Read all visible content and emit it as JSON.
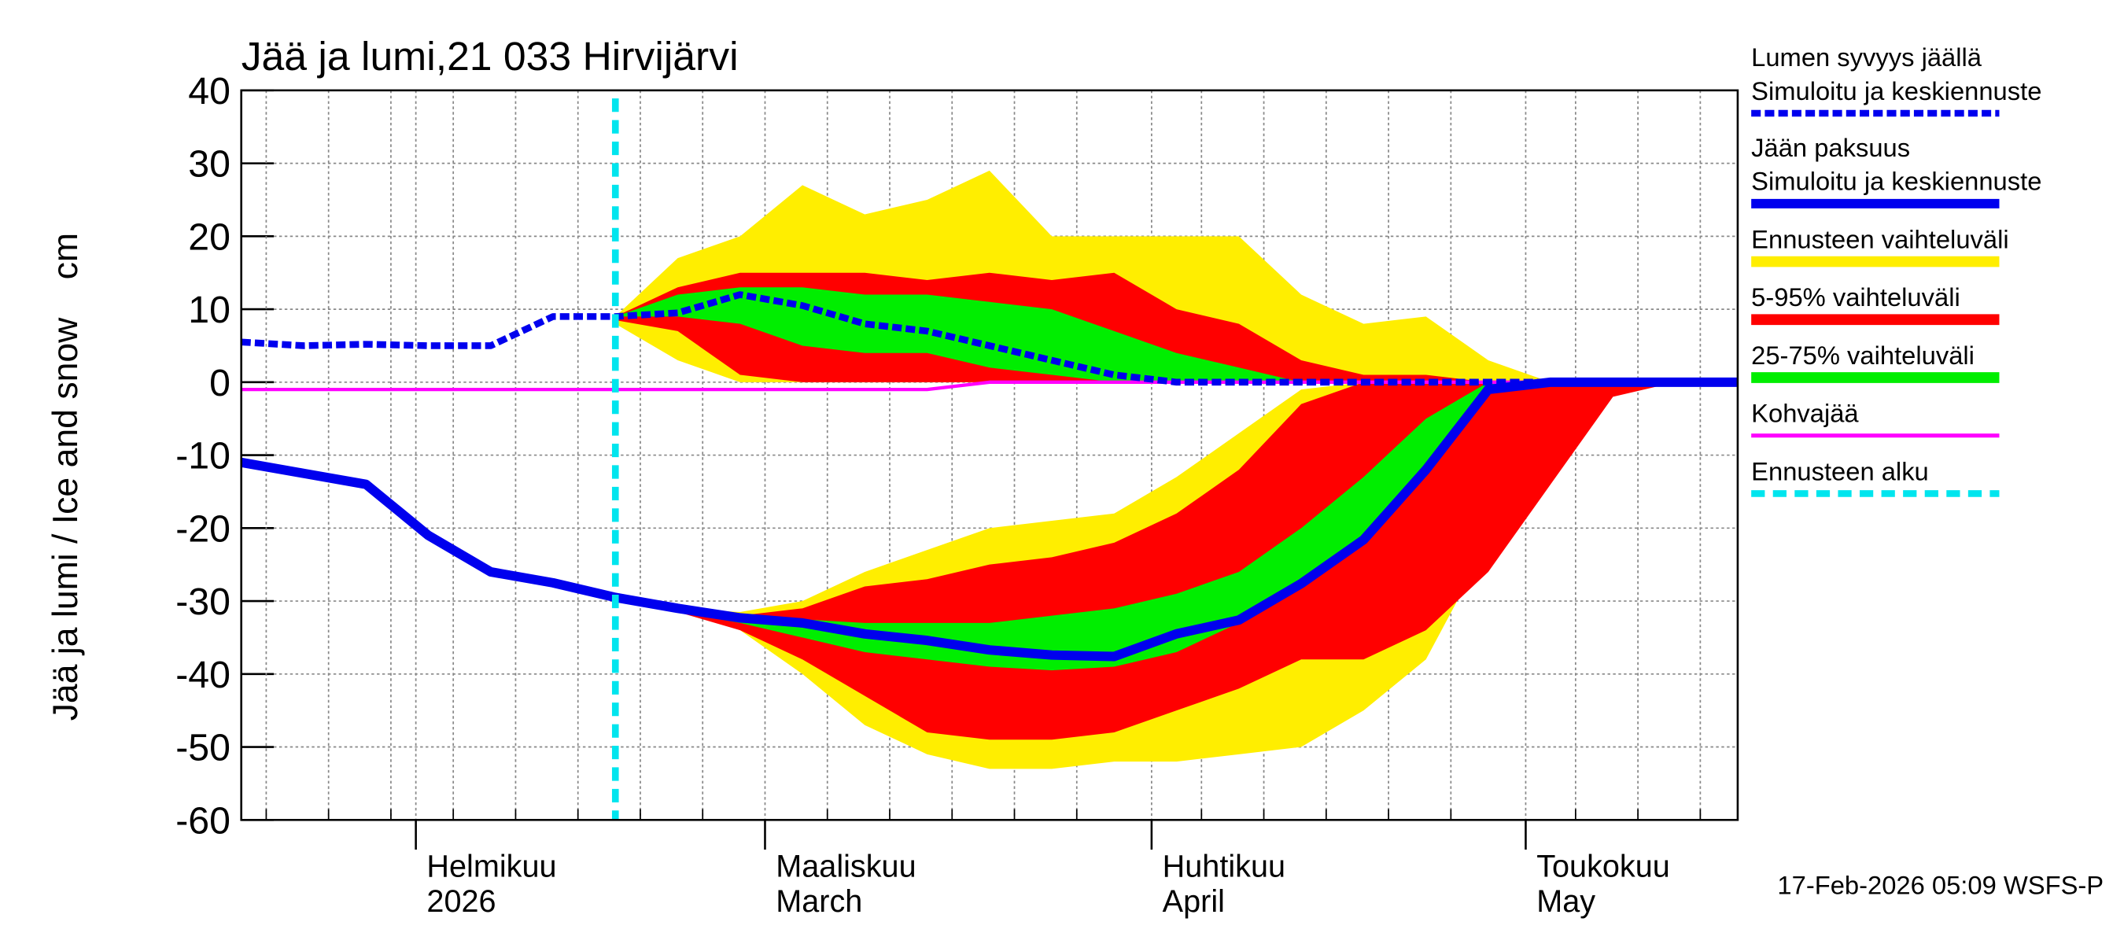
{
  "chart_data": {
    "type": "area",
    "title": "Jää ja lumi,21 033 Hirvijärvi",
    "y_label": "Jää ja lumi / Ice and snow",
    "y_unit": "cm",
    "timestamp": "17-Feb-2026 05:09 WSFS-P",
    "x": [
      18,
      23,
      28,
      33,
      38,
      43,
      48,
      53,
      58,
      63,
      68,
      73,
      78,
      83,
      88,
      93,
      98,
      103,
      108,
      113,
      118,
      123,
      128,
      133,
      138
    ],
    "xlim": [
      18,
      138
    ],
    "xticks": [
      {
        "value": 32,
        "label": "Helmikuu"
      },
      {
        "value": 60,
        "label": "Maaliskuu"
      },
      {
        "value": 91,
        "label": "Huhtikuu"
      },
      {
        "value": 121,
        "label": "Toukokuu"
      }
    ],
    "xtick_sublabels": [
      "2026",
      "March",
      "April",
      "May"
    ],
    "xminor": [
      20,
      25,
      30,
      35,
      40,
      45,
      50,
      55,
      65,
      70,
      75,
      80,
      85,
      95,
      100,
      105,
      110,
      115,
      125,
      130,
      135
    ],
    "ylim": [
      -60,
      40
    ],
    "yticks": [
      40,
      30,
      20,
      10,
      0,
      -10,
      -20,
      -30,
      -40,
      -50,
      -60
    ],
    "grid": true,
    "forecast_start": {
      "name": "Ennusteen alku",
      "x": 48,
      "color": "#00e5ee"
    },
    "bands": [
      {
        "name": "Ennusteen vaihteluväli",
        "color": "#ffee00",
        "snow_low": [
          null,
          null,
          null,
          null,
          null,
          null,
          8,
          3,
          0,
          0,
          0,
          0,
          0,
          0,
          0,
          0,
          0,
          0,
          0,
          0,
          0,
          0,
          0,
          0,
          0
        ],
        "snow_high": [
          null,
          null,
          null,
          null,
          null,
          null,
          9,
          17,
          20,
          27,
          23,
          25,
          29,
          20,
          20,
          20,
          20,
          12,
          8,
          9,
          3,
          0,
          0,
          0,
          0
        ],
        "ice_high": [
          null,
          null,
          null,
          null,
          null,
          null,
          -29.5,
          -31,
          -31.5,
          -30,
          -26,
          -23,
          -20,
          -19,
          -18,
          -13,
          -7,
          -1,
          0,
          0,
          0,
          0,
          0,
          0,
          0
        ],
        "ice_low": [
          null,
          null,
          null,
          null,
          null,
          null,
          -29.5,
          -31,
          -34,
          -40,
          -47,
          -51,
          -53,
          -53,
          -52,
          -52,
          -51,
          -50,
          -45,
          -38,
          -22,
          -5,
          0,
          0,
          0
        ]
      },
      {
        "name": "5-95% vaihteluväli",
        "color": "#ff0000",
        "snow_low": [
          null,
          null,
          null,
          null,
          null,
          null,
          8.5,
          7,
          1,
          0,
          0,
          0,
          0,
          0,
          0,
          0,
          0,
          0,
          0,
          0,
          0,
          0,
          0,
          0,
          0
        ],
        "snow_high": [
          null,
          null,
          null,
          null,
          null,
          null,
          9,
          13,
          15,
          15,
          15,
          14,
          15,
          14,
          15,
          10,
          8,
          3,
          1,
          1,
          0,
          0,
          0,
          0,
          0
        ],
        "ice_high": [
          null,
          null,
          null,
          null,
          null,
          null,
          -29.5,
          -31,
          -32,
          -31,
          -28,
          -27,
          -25,
          -24,
          -22,
          -18,
          -12,
          -3,
          0,
          0,
          0,
          0,
          0,
          0,
          0
        ],
        "ice_low": [
          null,
          null,
          null,
          null,
          null,
          null,
          -29.5,
          -31.5,
          -34,
          -38,
          -43,
          -48,
          -49,
          -49,
          -48,
          -45,
          -42,
          -38,
          -38,
          -34,
          -26,
          -14,
          -2,
          0,
          0
        ]
      },
      {
        "name": "25-75% vaihteluväli",
        "color": "#00ee00",
        "snow_low": [
          null,
          null,
          null,
          null,
          null,
          null,
          9,
          9,
          8,
          5,
          4,
          4,
          2,
          1,
          0,
          0,
          0,
          0,
          0,
          0,
          0,
          0,
          0,
          0,
          0
        ],
        "snow_high": [
          null,
          null,
          null,
          null,
          null,
          null,
          9,
          12,
          13,
          13,
          12,
          12,
          11,
          10,
          7,
          4,
          2,
          0,
          0,
          0,
          0,
          0,
          0,
          0,
          0
        ],
        "ice_high": [
          null,
          null,
          null,
          null,
          null,
          null,
          -29.5,
          -31,
          -32,
          -32.5,
          -33,
          -33,
          -33,
          -32,
          -31,
          -29,
          -26,
          -20,
          -13,
          -5,
          0,
          0,
          0,
          0,
          0
        ],
        "ice_low": [
          null,
          null,
          null,
          null,
          null,
          null,
          -29.5,
          -31.5,
          -33,
          -35,
          -37,
          -38,
          -39,
          -39.5,
          -39,
          -37,
          -33,
          -27,
          -21,
          -13,
          -1,
          0,
          0,
          0,
          0
        ]
      }
    ],
    "series": [
      {
        "name": [
          "Lumen syvyys jäällä",
          "Simuloitu ja keskiennuste"
        ],
        "color": "#0000ee",
        "style": "dashed",
        "values": [
          5.5,
          5,
          5.2,
          5,
          5,
          9,
          9,
          9.5,
          12,
          10.5,
          8,
          7,
          5,
          3,
          1,
          0,
          0,
          0,
          0,
          0,
          0,
          0,
          0,
          0,
          0
        ]
      },
      {
        "name": [
          "Jään paksuus",
          "Simuloitu ja keskiennuste"
        ],
        "color": "#0000ee",
        "style": "solid",
        "values": [
          -11,
          -12.5,
          -14,
          -21,
          -26,
          -27.5,
          -29.5,
          -31,
          -32.3,
          -33,
          -34.5,
          -35.4,
          -36.7,
          -37.4,
          -37.6,
          -34.5,
          -32.6,
          -27.6,
          -21.6,
          -12,
          -1,
          0,
          0,
          0,
          0
        ]
      },
      {
        "name": [
          "Kohvajää"
        ],
        "color": "#ff00ff",
        "style": "thin",
        "values": [
          -1,
          -1,
          -1,
          -1,
          -1,
          -1,
          -1,
          -1,
          -1,
          -1,
          -1,
          -1,
          0,
          0,
          0,
          0,
          0,
          0,
          0,
          0,
          0,
          0,
          0,
          0,
          0
        ]
      }
    ]
  }
}
